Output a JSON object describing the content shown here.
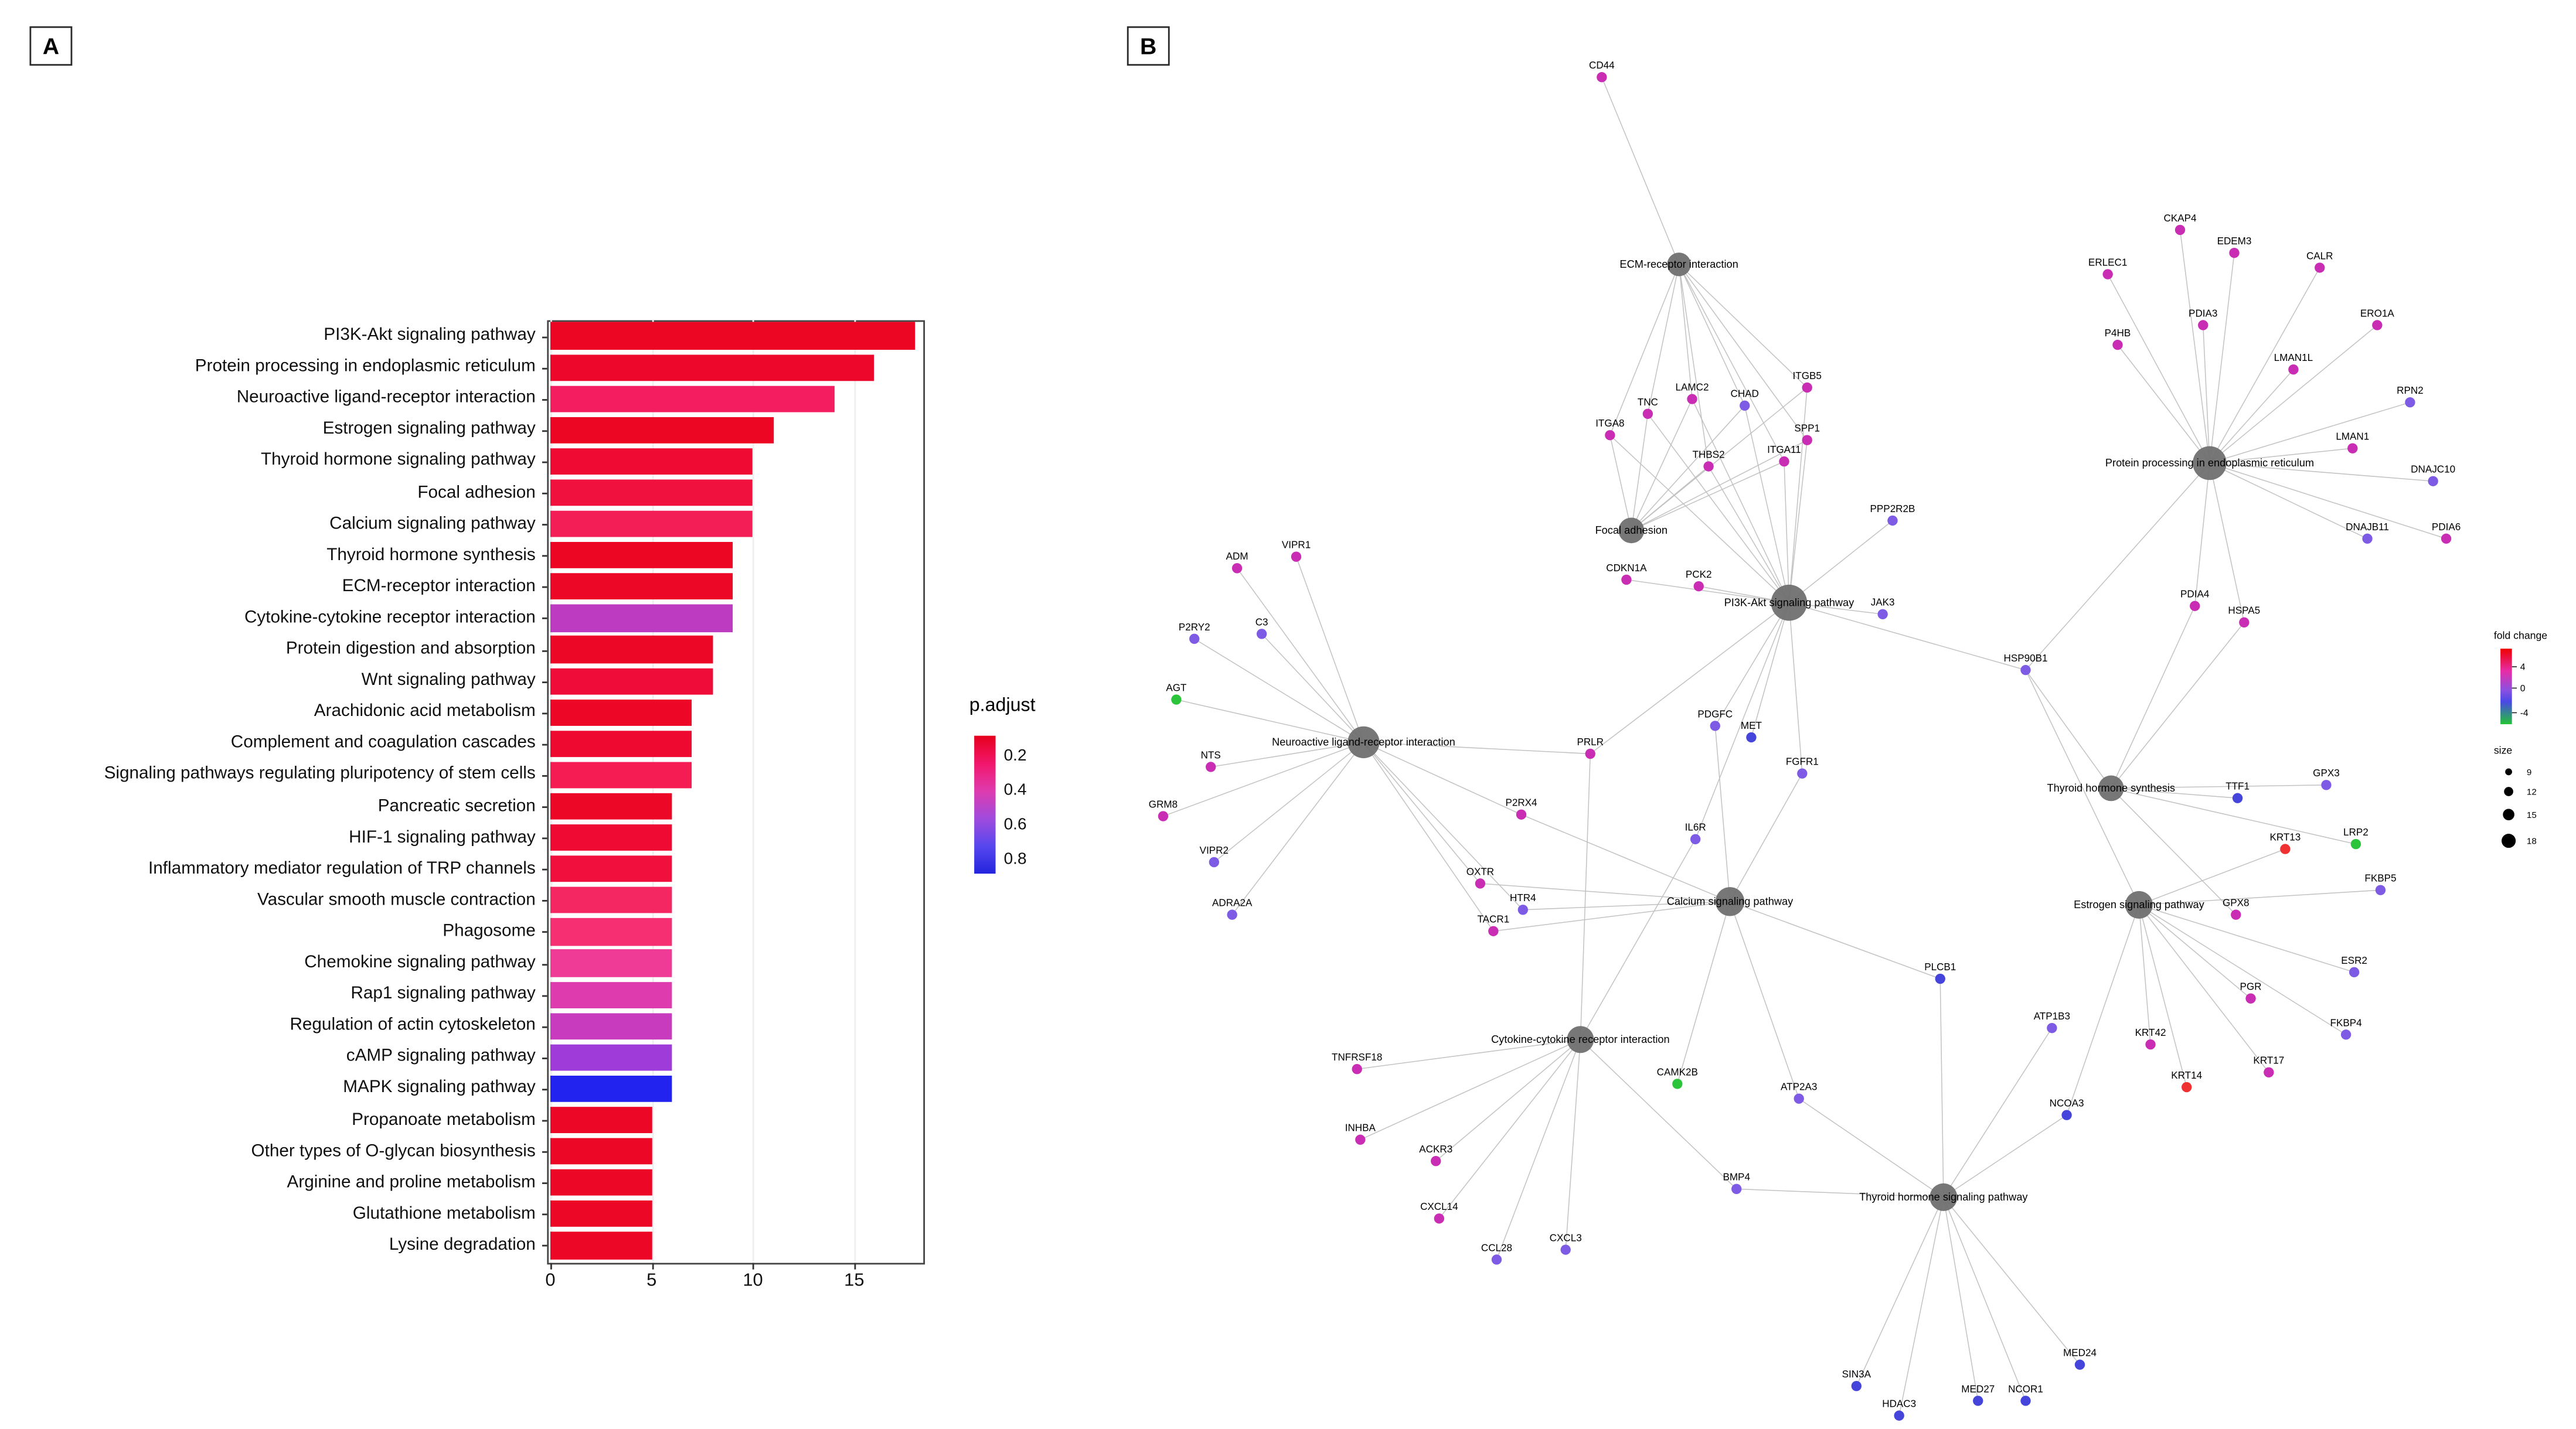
{
  "figure": {
    "panel_a_label": "A",
    "panel_b_label": "B"
  },
  "chart_data": [
    {
      "type": "bar",
      "orientation": "horizontal",
      "title": "",
      "xlabel": "",
      "ylabel": "",
      "x_ticks": [
        0,
        5,
        10,
        15
      ],
      "xlim": [
        0,
        18.5
      ],
      "legend": {
        "title": "p.adjust",
        "ticks": [
          "0.2",
          "0.4",
          "0.6",
          "0.8"
        ],
        "gradient": [
          "#E6001C",
          "#F2166B",
          "#DE3BAE",
          "#A04BDD",
          "#5747EE",
          "#2424DE"
        ]
      },
      "categories": [
        "PI3K-Akt signaling pathway",
        "Protein processing in endoplasmic reticulum",
        "Neuroactive ligand-receptor interaction",
        "Estrogen signaling pathway",
        "Thyroid hormone signaling pathway",
        "Focal adhesion",
        "Calcium signaling pathway",
        "Thyroid hormone synthesis",
        "ECM-receptor interaction",
        "Cytokine-cytokine receptor interaction",
        "Protein digestion and absorption",
        "Wnt signaling pathway",
        "Arachidonic acid metabolism",
        "Complement and coagulation cascades",
        "Signaling pathways regulating pluripotency of stem cells",
        "Pancreatic secretion",
        "HIF-1 signaling pathway",
        "Inflammatory mediator regulation of TRP channels",
        "Vascular smooth muscle contraction",
        "Phagosome",
        "Chemokine signaling pathway",
        "Rap1 signaling pathway",
        "Regulation of actin cytoskeleton",
        "cAMP signaling pathway",
        "MAPK signaling pathway",
        "Propanoate metabolism",
        "Other types of O-glycan biosynthesis",
        "Arginine and proline metabolism",
        "Glutathione metabolism",
        "Lysine degradation"
      ],
      "values": [
        18,
        16,
        14,
        11,
        10,
        10,
        10,
        9,
        9,
        9,
        8,
        8,
        7,
        7,
        7,
        6,
        6,
        6,
        6,
        6,
        6,
        6,
        6,
        6,
        6,
        5,
        5,
        5,
        5,
        5
      ],
      "bar_colors": [
        "#EC0623",
        "#ED082B",
        "#F31D5F",
        "#EC0623",
        "#EE0A33",
        "#F0113F",
        "#F41E56",
        "#EC0623",
        "#ED0727",
        "#BC3BC0",
        "#ED0727",
        "#EF0C38",
        "#ED0625",
        "#EE0930",
        "#F41C53",
        "#ED0727",
        "#EE0A32",
        "#F00F3D",
        "#F52762",
        "#F52F72",
        "#EF3A96",
        "#DE3BAE",
        "#C83BBE",
        "#9F3CD9",
        "#2323EF",
        "#ED0727",
        "#ED0727",
        "#ED0727",
        "#ED0727",
        "#ED0727"
      ]
    },
    {
      "type": "network",
      "legend_fold_change": {
        "title": "fold change",
        "ticks": [
          "4",
          "0",
          "-4"
        ],
        "gradient": [
          "#EE0000",
          "#E62DA8",
          "#8A50E0",
          "#4A48E6",
          "#22C435"
        ],
        "gradient_offsets": [
          0,
          0.3,
          0.55,
          0.7,
          1
        ]
      },
      "legend_size": {
        "title": "size",
        "values": [
          "9",
          "12",
          "15",
          "18"
        ]
      },
      "pathways": [
        {
          "id": "p_ecm",
          "label": "ECM-receptor interaction",
          "x": 1022,
          "y": 161,
          "r": 7.2
        },
        {
          "id": "p_focal",
          "label": "Focal adhesion",
          "x": 993,
          "y": 323,
          "r": 7.8
        },
        {
          "id": "p_pi3k",
          "label": "PI3K-Akt signaling pathway",
          "x": 1089,
          "y": 367,
          "r": 11
        },
        {
          "id": "p_ppe",
          "label": "Protein processing in endoplasmic reticulum",
          "x": 1345,
          "y": 282,
          "r": 10.3
        },
        {
          "id": "p_neuro",
          "label": "Neuroactive ligand-receptor interaction",
          "x": 830,
          "y": 452,
          "r": 9.7
        },
        {
          "id": "p_ths",
          "label": "Thyroid hormone synthesis",
          "x": 1285,
          "y": 480,
          "r": 7.8
        },
        {
          "id": "p_cal",
          "label": "Calcium signaling pathway",
          "x": 1053,
          "y": 549,
          "r": 8.8
        },
        {
          "id": "p_est",
          "label": "Estrogen signaling pathway",
          "x": 1302,
          "y": 551,
          "r": 8.4
        },
        {
          "id": "p_cyt",
          "label": "Cytokine-cytokine receptor interaction",
          "x": 962,
          "y": 633,
          "r": 8.2
        },
        {
          "id": "p_thsig",
          "label": "Thyroid hormone signaling pathway",
          "x": 1183,
          "y": 729,
          "r": 8.4
        }
      ],
      "genes": [
        {
          "label": "CD44",
          "x": 975,
          "y": 47,
          "c": "#C92DB4",
          "links": [
            "p_ecm"
          ]
        },
        {
          "label": "TNC",
          "x": 1003,
          "y": 252,
          "c": "#C92DB4",
          "links": [
            "p_ecm",
            "p_focal",
            "p_pi3k"
          ]
        },
        {
          "label": "LAMC2",
          "x": 1030,
          "y": 243,
          "c": "#C92DB4",
          "links": [
            "p_ecm",
            "p_focal",
            "p_pi3k"
          ]
        },
        {
          "label": "CHAD",
          "x": 1062,
          "y": 247,
          "c": "#7E5BE4",
          "links": [
            "p_ecm",
            "p_focal",
            "p_pi3k"
          ]
        },
        {
          "label": "ITGB5",
          "x": 1100,
          "y": 236,
          "c": "#C92DB4",
          "links": [
            "p_ecm",
            "p_focal",
            "p_pi3k"
          ]
        },
        {
          "label": "ITGA8",
          "x": 980,
          "y": 265,
          "c": "#C92DB4",
          "links": [
            "p_ecm",
            "p_focal",
            "p_pi3k"
          ]
        },
        {
          "label": "THBS2",
          "x": 1040,
          "y": 284,
          "c": "#C92DB4",
          "links": [
            "p_ecm",
            "p_focal",
            "p_pi3k"
          ]
        },
        {
          "label": "ITGA11",
          "x": 1086,
          "y": 281,
          "c": "#C92DB4",
          "links": [
            "p_ecm",
            "p_focal",
            "p_pi3k"
          ]
        },
        {
          "label": "SPP1",
          "x": 1100,
          "y": 268,
          "c": "#C92DB4",
          "links": [
            "p_ecm",
            "p_focal",
            "p_pi3k"
          ]
        },
        {
          "label": "PPP2R2B",
          "x": 1152,
          "y": 317,
          "c": "#7E5BE4",
          "links": [
            "p_pi3k"
          ]
        },
        {
          "label": "CDKN1A",
          "x": 990,
          "y": 353,
          "c": "#C92DB4",
          "links": [
            "p_pi3k"
          ]
        },
        {
          "label": "PCK2",
          "x": 1034,
          "y": 357,
          "c": "#C92DB4",
          "links": [
            "p_pi3k"
          ]
        },
        {
          "label": "JAK3",
          "x": 1146,
          "y": 374,
          "c": "#7E5BE4",
          "links": [
            "p_pi3k"
          ]
        },
        {
          "label": "HSP90B1",
          "x": 1233,
          "y": 408,
          "c": "#7E5BE4",
          "links": [
            "p_pi3k",
            "p_ppe",
            "p_ths",
            "p_est"
          ]
        },
        {
          "label": "PDGFC",
          "x": 1044,
          "y": 442,
          "c": "#7E5BE4",
          "links": [
            "p_pi3k",
            "p_cal"
          ]
        },
        {
          "label": "MET",
          "x": 1066,
          "y": 449,
          "c": "#4545DC",
          "links": [
            "p_pi3k"
          ]
        },
        {
          "label": "FGFR1",
          "x": 1097,
          "y": 471,
          "c": "#7E5BE4",
          "links": [
            "p_pi3k",
            "p_cal"
          ]
        },
        {
          "label": "IL6R",
          "x": 1032,
          "y": 511,
          "c": "#7E5BE4",
          "links": [
            "p_pi3k",
            "p_cyt"
          ]
        },
        {
          "label": "PRLR",
          "x": 968,
          "y": 459,
          "c": "#C92DB4",
          "links": [
            "p_neuro",
            "p_pi3k",
            "p_cyt"
          ]
        },
        {
          "label": "ADM",
          "x": 753,
          "y": 346,
          "c": "#C92DB4",
          "links": [
            "p_neuro"
          ]
        },
        {
          "label": "VIPR1",
          "x": 789,
          "y": 339,
          "c": "#C92DB4",
          "links": [
            "p_neuro"
          ]
        },
        {
          "label": "P2RY2",
          "x": 727,
          "y": 389,
          "c": "#7E5BE4",
          "links": [
            "p_neuro"
          ]
        },
        {
          "label": "C3",
          "x": 768,
          "y": 386,
          "c": "#7E5BE4",
          "links": [
            "p_neuro"
          ]
        },
        {
          "label": "AGT",
          "x": 716,
          "y": 426,
          "c": "#2CC43B",
          "links": [
            "p_neuro"
          ]
        },
        {
          "label": "NTS",
          "x": 737,
          "y": 467,
          "c": "#C92DB4",
          "links": [
            "p_neuro"
          ]
        },
        {
          "label": "GRM8",
          "x": 708,
          "y": 497,
          "c": "#C92DB4",
          "links": [
            "p_neuro"
          ]
        },
        {
          "label": "VIPR2",
          "x": 739,
          "y": 525,
          "c": "#7E5BE4",
          "links": [
            "p_neuro"
          ]
        },
        {
          "label": "ADRA2A",
          "x": 750,
          "y": 557,
          "c": "#7E5BE4",
          "links": [
            "p_neuro"
          ]
        },
        {
          "label": "P2RX4",
          "x": 926,
          "y": 496,
          "c": "#C92DB4",
          "links": [
            "p_neuro",
            "p_cal"
          ]
        },
        {
          "label": "OXTR",
          "x": 901,
          "y": 538,
          "c": "#C92DB4",
          "links": [
            "p_neuro",
            "p_cal"
          ]
        },
        {
          "label": "HTR4",
          "x": 927,
          "y": 554,
          "c": "#7E5BE4",
          "links": [
            "p_neuro",
            "p_cal"
          ]
        },
        {
          "label": "TACR1",
          "x": 909,
          "y": 567,
          "c": "#C92DB4",
          "links": [
            "p_neuro",
            "p_cal"
          ]
        },
        {
          "label": "PLCB1",
          "x": 1181,
          "y": 596,
          "c": "#4545DC",
          "links": [
            "p_cal",
            "p_thsig"
          ]
        },
        {
          "label": "ATP2A3",
          "x": 1095,
          "y": 669,
          "c": "#7E5BE4",
          "links": [
            "p_cal",
            "p_thsig"
          ]
        },
        {
          "label": "CAMK2B",
          "x": 1021,
          "y": 660,
          "c": "#2CC43B",
          "links": [
            "p_cal"
          ]
        },
        {
          "label": "BMP4",
          "x": 1057,
          "y": 724,
          "c": "#7E5BE4",
          "links": [
            "p_cyt",
            "p_thsig"
          ]
        },
        {
          "label": "TNFRSF18",
          "x": 826,
          "y": 651,
          "c": "#C92DB4",
          "links": [
            "p_cyt"
          ]
        },
        {
          "label": "INHBA",
          "x": 828,
          "y": 694,
          "c": "#C92DB4",
          "links": [
            "p_cyt"
          ]
        },
        {
          "label": "ACKR3",
          "x": 874,
          "y": 707,
          "c": "#C92DB4",
          "links": [
            "p_cyt"
          ]
        },
        {
          "label": "CXCL14",
          "x": 876,
          "y": 742,
          "c": "#C92DB4",
          "links": [
            "p_cyt"
          ]
        },
        {
          "label": "CCL28",
          "x": 911,
          "y": 767,
          "c": "#7E5BE4",
          "links": [
            "p_cyt"
          ]
        },
        {
          "label": "CXCL3",
          "x": 953,
          "y": 761,
          "c": "#7E5BE4",
          "links": [
            "p_cyt"
          ]
        },
        {
          "label": "CKAP4",
          "x": 1327,
          "y": 140,
          "c": "#C92DB4",
          "links": [
            "p_ppe"
          ]
        },
        {
          "label": "EDEM3",
          "x": 1360,
          "y": 154,
          "c": "#C92DB4",
          "links": [
            "p_ppe"
          ]
        },
        {
          "label": "ERLEC1",
          "x": 1283,
          "y": 167,
          "c": "#C92DB4",
          "links": [
            "p_ppe"
          ]
        },
        {
          "label": "CALR",
          "x": 1412,
          "y": 163,
          "c": "#C92DB4",
          "links": [
            "p_ppe"
          ]
        },
        {
          "label": "PDIA3",
          "x": 1341,
          "y": 198,
          "c": "#C92DB4",
          "links": [
            "p_ppe"
          ]
        },
        {
          "label": "P4HB",
          "x": 1289,
          "y": 210,
          "c": "#C92DB4",
          "links": [
            "p_ppe"
          ]
        },
        {
          "label": "ERO1A",
          "x": 1447,
          "y": 198,
          "c": "#C92DB4",
          "links": [
            "p_ppe"
          ]
        },
        {
          "label": "LMAN1L",
          "x": 1396,
          "y": 225,
          "c": "#C92DB4",
          "links": [
            "p_ppe"
          ]
        },
        {
          "label": "RPN2",
          "x": 1467,
          "y": 245,
          "c": "#7E5BE4",
          "links": [
            "p_ppe"
          ]
        },
        {
          "label": "LMAN1",
          "x": 1432,
          "y": 273,
          "c": "#C92DB4",
          "links": [
            "p_ppe"
          ]
        },
        {
          "label": "DNAJC10",
          "x": 1481,
          "y": 293,
          "c": "#7E5BE4",
          "links": [
            "p_ppe"
          ]
        },
        {
          "label": "DNAJB11",
          "x": 1441,
          "y": 328,
          "c": "#7E5BE4",
          "links": [
            "p_ppe"
          ]
        },
        {
          "label": "PDIA6",
          "x": 1489,
          "y": 328,
          "c": "#C92DB4",
          "links": [
            "p_ppe"
          ]
        },
        {
          "label": "PDIA4",
          "x": 1336,
          "y": 369,
          "c": "#C92DB4",
          "links": [
            "p_ppe",
            "p_ths"
          ]
        },
        {
          "label": "HSPA5",
          "x": 1366,
          "y": 379,
          "c": "#C92DB4",
          "links": [
            "p_ppe",
            "p_ths"
          ]
        },
        {
          "label": "TTF1",
          "x": 1362,
          "y": 486,
          "c": "#4545DC",
          "links": [
            "p_ths"
          ]
        },
        {
          "label": "GPX3",
          "x": 1416,
          "y": 478,
          "c": "#7E5BE4",
          "links": [
            "p_ths"
          ]
        },
        {
          "label": "LRP2",
          "x": 1434,
          "y": 514,
          "c": "#2CC43B",
          "links": [
            "p_ths"
          ]
        },
        {
          "label": "KRT13",
          "x": 1391,
          "y": 517,
          "c": "#F03131",
          "links": [
            "p_est"
          ]
        },
        {
          "label": "FKBP5",
          "x": 1449,
          "y": 542,
          "c": "#7E5BE4",
          "links": [
            "p_est"
          ]
        },
        {
          "label": "GPX8",
          "x": 1361,
          "y": 557,
          "c": "#C92DB4",
          "links": [
            "p_ths"
          ]
        },
        {
          "label": "ESR2",
          "x": 1433,
          "y": 592,
          "c": "#7E5BE4",
          "links": [
            "p_est"
          ]
        },
        {
          "label": "PGR",
          "x": 1370,
          "y": 608,
          "c": "#C92DB4",
          "links": [
            "p_est"
          ]
        },
        {
          "label": "FKBP4",
          "x": 1428,
          "y": 630,
          "c": "#7E5BE4",
          "links": [
            "p_est"
          ]
        },
        {
          "label": "KRT42",
          "x": 1309,
          "y": 636,
          "c": "#C92DB4",
          "links": [
            "p_est"
          ]
        },
        {
          "label": "KRT17",
          "x": 1381,
          "y": 653,
          "c": "#C92DB4",
          "links": [
            "p_est"
          ]
        },
        {
          "label": "KRT14",
          "x": 1331,
          "y": 662,
          "c": "#F03131",
          "links": [
            "p_est"
          ]
        },
        {
          "label": "NCOA3",
          "x": 1258,
          "y": 679,
          "c": "#4545DC",
          "links": [
            "p_est",
            "p_thsig"
          ]
        },
        {
          "label": "ATP1B3",
          "x": 1249,
          "y": 626,
          "c": "#7E5BE4",
          "links": [
            "p_thsig"
          ]
        },
        {
          "label": "MED24",
          "x": 1266,
          "y": 831,
          "c": "#4545DC",
          "links": [
            "p_thsig"
          ]
        },
        {
          "label": "SIN3A",
          "x": 1130,
          "y": 844,
          "c": "#4545DC",
          "links": [
            "p_thsig"
          ]
        },
        {
          "label": "HDAC3",
          "x": 1156,
          "y": 862,
          "c": "#4545DC",
          "links": [
            "p_thsig"
          ]
        },
        {
          "label": "MED27",
          "x": 1204,
          "y": 853,
          "c": "#4545DC",
          "links": [
            "p_thsig"
          ]
        },
        {
          "label": "NCOR1",
          "x": 1233,
          "y": 853,
          "c": "#4545DC",
          "links": [
            "p_thsig"
          ]
        }
      ]
    }
  ]
}
